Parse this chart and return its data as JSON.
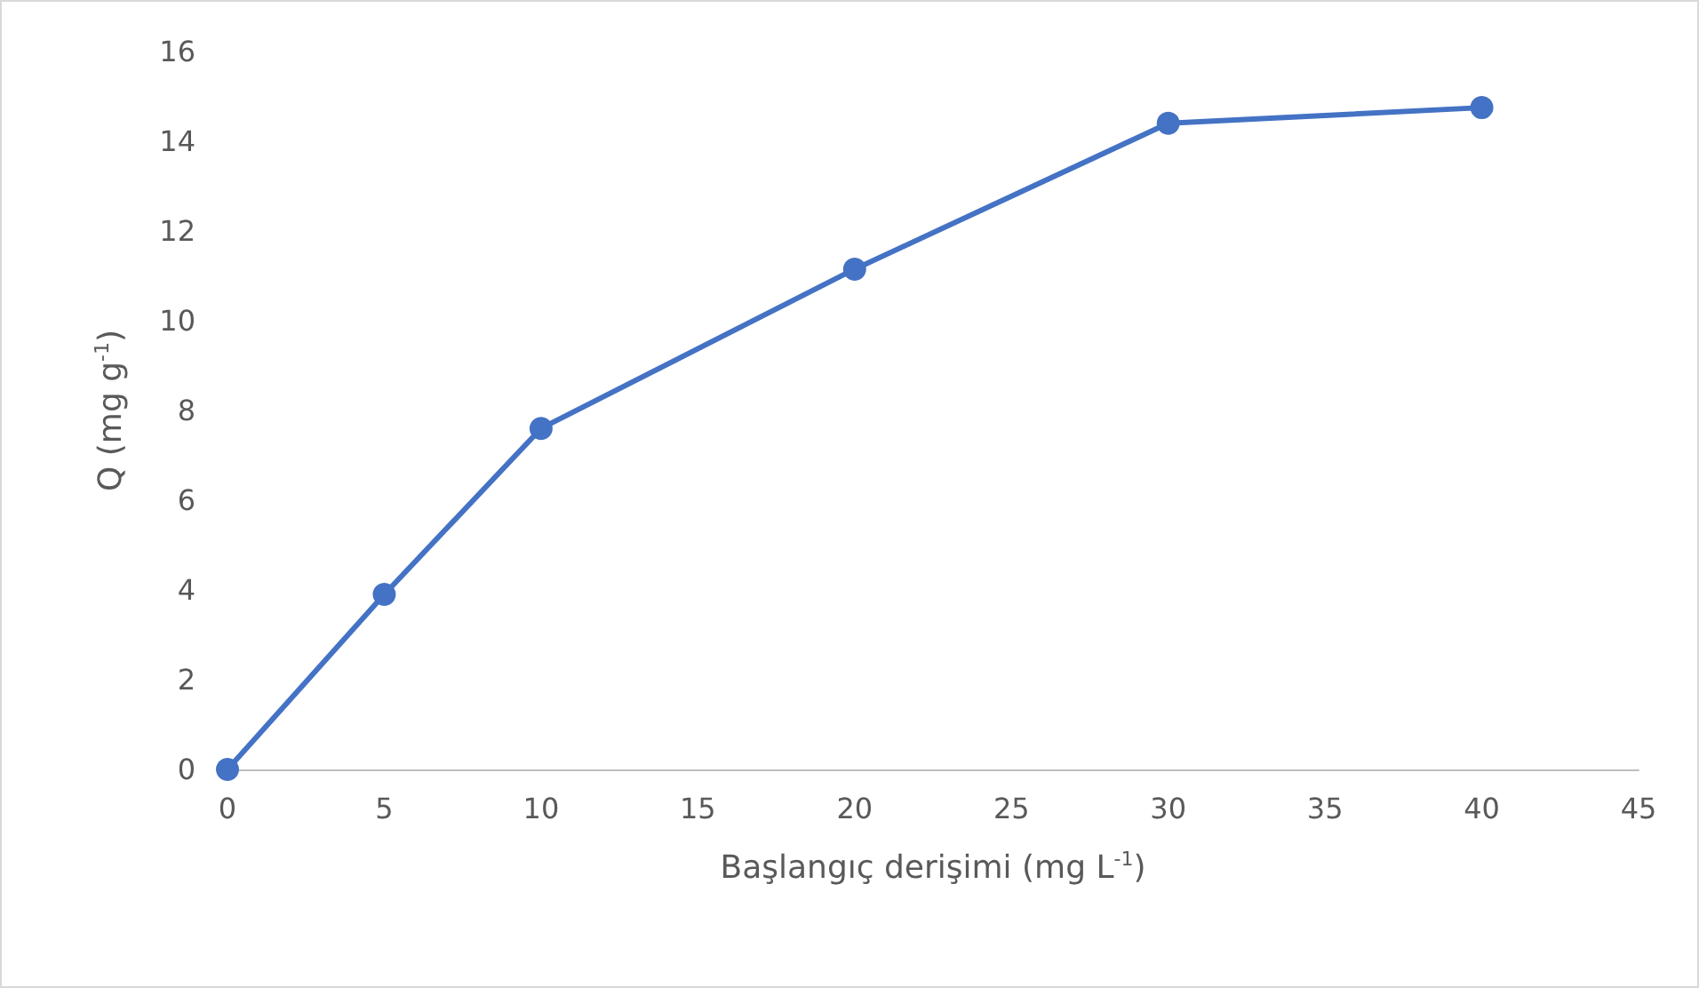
{
  "chart_data": {
    "type": "line",
    "xlabel": "Başlangıç derişimi (mg L$^{-1}$)",
    "ylabel": "Q (mg g$^{-1}$)",
    "x": [
      0,
      5,
      10,
      20,
      30,
      40
    ],
    "series": [
      {
        "color": "#4472c4",
        "values": [
          0,
          3.9,
          7.6,
          11.15,
          14.4,
          14.75
        ]
      }
    ],
    "xlim": [
      0,
      45
    ],
    "xticks": [
      0,
      5,
      10,
      15,
      20,
      25,
      30,
      35,
      40,
      45
    ],
    "ylim": [
      0,
      16
    ],
    "yticks": [
      0,
      2,
      4,
      6,
      8,
      10,
      12,
      14,
      16
    ],
    "grid": false,
    "marker": "circle",
    "line_style": "solid"
  }
}
